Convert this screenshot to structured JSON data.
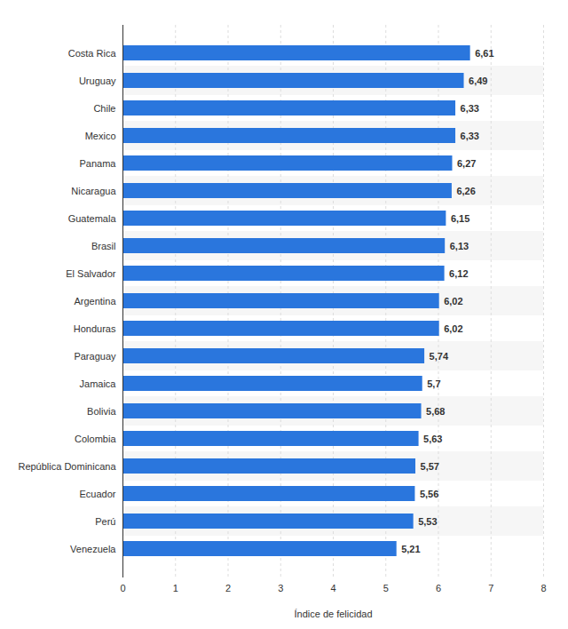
{
  "chart_data": {
    "type": "bar",
    "orientation": "horizontal",
    "categories": [
      "Costa Rica",
      "Uruguay",
      "Chile",
      "Mexico",
      "Panama",
      "Nicaragua",
      "Guatemala",
      "Brasil",
      "El Salvador",
      "Argentina",
      "Honduras",
      "Paraguay",
      "Jamaica",
      "Bolivia",
      "Colombia",
      "República Dominicana",
      "Ecuador",
      "Perú",
      "Venezuela"
    ],
    "values": [
      6.61,
      6.49,
      6.33,
      6.33,
      6.27,
      6.26,
      6.15,
      6.13,
      6.12,
      6.02,
      6.02,
      5.74,
      5.7,
      5.68,
      5.63,
      5.57,
      5.56,
      5.53,
      5.21
    ],
    "value_labels": [
      "6,61",
      "6,49",
      "6,33",
      "6,33",
      "6,27",
      "6,26",
      "6,15",
      "6,13",
      "6,12",
      "6,02",
      "6,02",
      "5,74",
      "5,7",
      "5,68",
      "5,63",
      "5,57",
      "5,56",
      "5,53",
      "5,21"
    ],
    "data_labels": true,
    "color": "#2a76dd",
    "x_label": "Índice de felicidad",
    "xlim": [
      0,
      8
    ],
    "xticks": [
      0,
      1,
      2,
      3,
      4,
      5,
      6,
      7,
      8
    ],
    "grid": true
  }
}
